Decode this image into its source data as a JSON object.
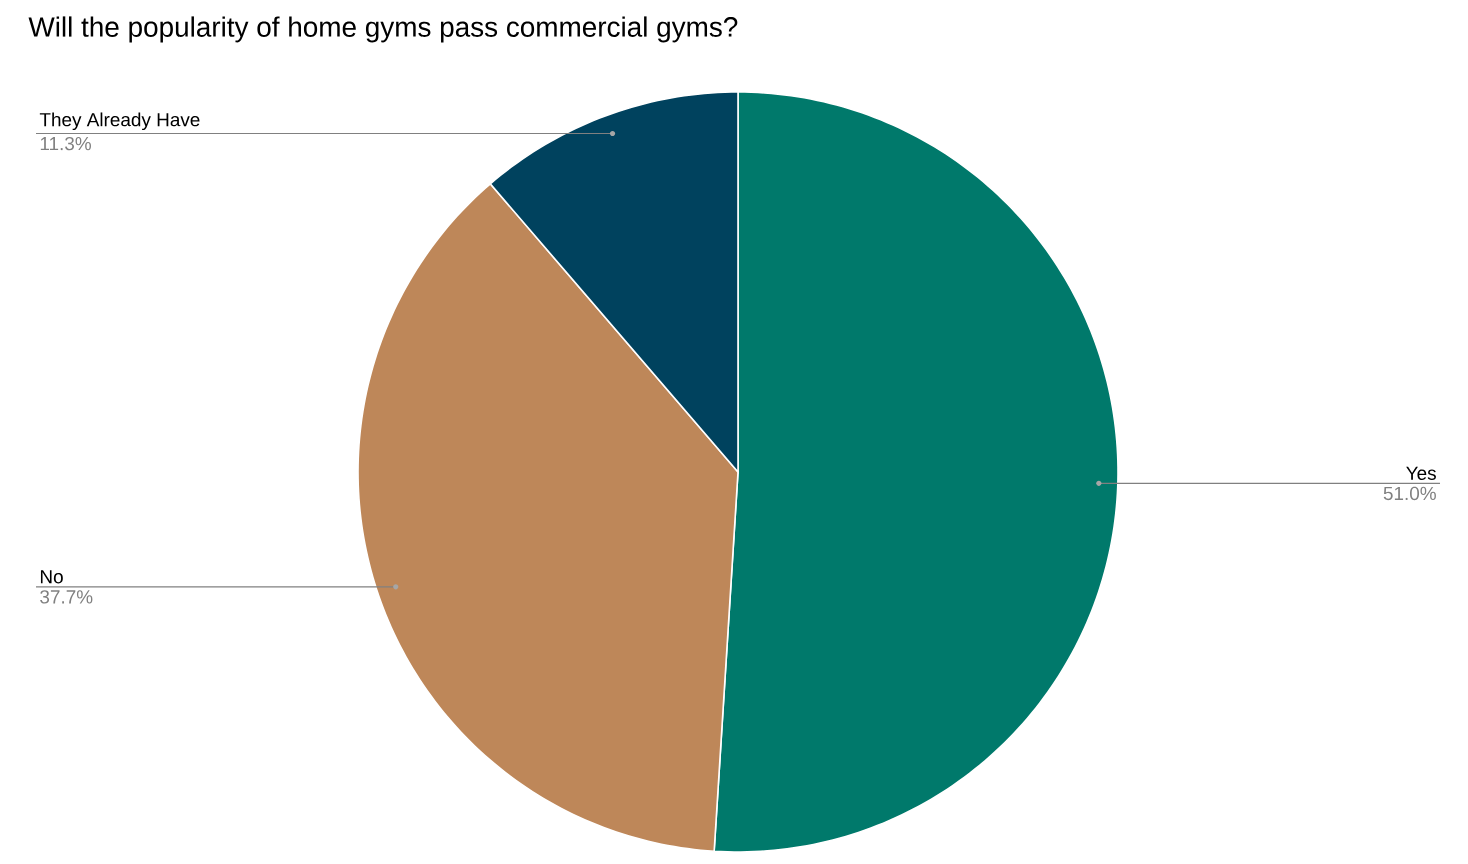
{
  "chart_data": {
    "type": "pie",
    "title": "Will the popularity of home gyms pass commercial gyms?",
    "categories": [
      "Yes",
      "No",
      "They Already Have"
    ],
    "values": [
      51.0,
      37.7,
      11.3
    ],
    "value_labels": [
      "51.0%",
      "37.7%",
      "11.3%"
    ],
    "colors": [
      "#00796b",
      "#be8759",
      "#00425e"
    ]
  }
}
